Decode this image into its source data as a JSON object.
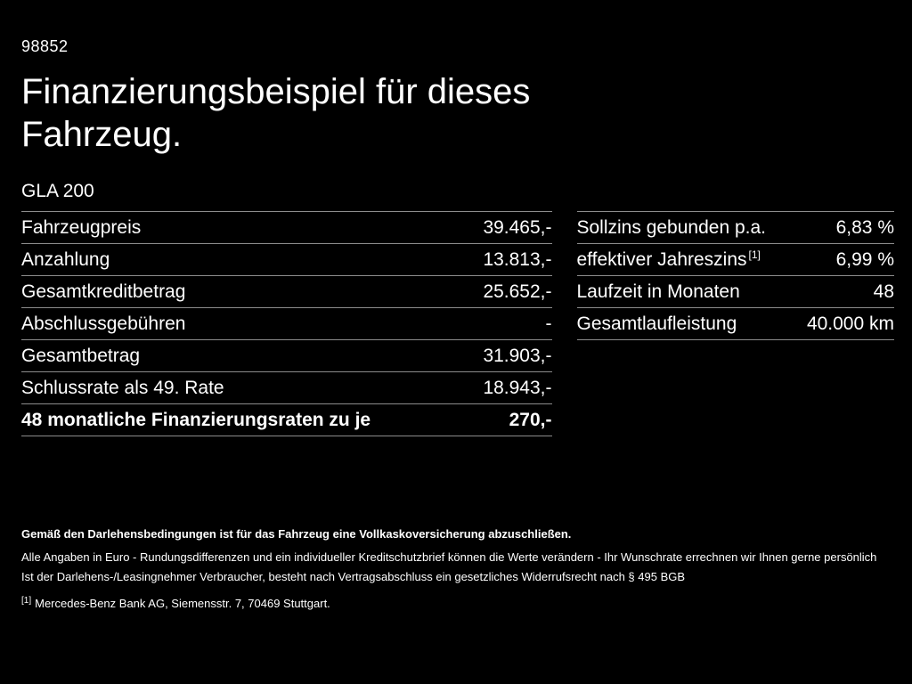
{
  "header": {
    "reference": "98852",
    "title": "Finanzierungsbeispiel für dieses Fahrzeug.",
    "model": "GLA 200"
  },
  "left_table": {
    "rows": [
      {
        "label": "Fahrzeugpreis",
        "value": "39.465,-"
      },
      {
        "label": "Anzahlung",
        "value": "13.813,-"
      },
      {
        "label": "Gesamtkreditbetrag",
        "value": "25.652,-"
      },
      {
        "label": "Abschlussgebühren",
        "value": "-"
      },
      {
        "label": "Gesamtbetrag",
        "value": "31.903,-"
      },
      {
        "label": "Schlussrate als 49. Rate",
        "value": "18.943,-"
      },
      {
        "label": "48 monatliche Finanzierungsraten zu je",
        "value": "270,-"
      }
    ]
  },
  "right_table": {
    "rows": [
      {
        "label": "Sollzins gebunden p.a.",
        "value": "6,83 %"
      },
      {
        "label": "effektiver Jahreszins",
        "sup": "[1]",
        "value": "6,99 %"
      },
      {
        "label": "Laufzeit in Monaten",
        "value": "48"
      },
      {
        "label": "Gesamtlaufleistung",
        "value": "40.000 km"
      }
    ]
  },
  "footer": {
    "line1": "Gemäß den Darlehensbedingungen ist für das Fahrzeug eine Vollkaskoversicherung abzuschließen.",
    "line2": "Alle Angaben in Euro - Rundungsdifferenzen und ein individueller Kreditschutzbrief können die Werte verändern - Ihr Wunschrate errechnen wir Ihnen gerne persönlich",
    "line3": "Ist der Darlehens-/Leasingnehmer Verbraucher, besteht nach Vertragsabschluss ein gesetzliches Widerrufsrecht nach § 495 BGB",
    "footnote_marker": "[1]",
    "footnote_text": "Mercedes-Benz Bank AG, Siemensstr. 7, 70469 Stuttgart."
  },
  "colors": {
    "background": "#000000",
    "text": "#ffffff",
    "rule": "#8c8c8c"
  }
}
